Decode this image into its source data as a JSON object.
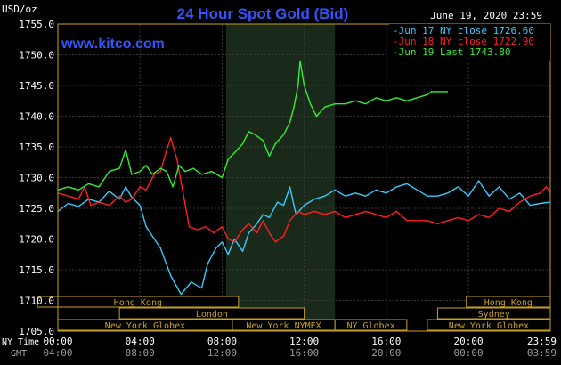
{
  "chart_data": {
    "type": "line",
    "title": "24 Hour Spot Gold (Bid)",
    "watermark": "www.kitco.com",
    "timestamp": "June 19, 2020 23:59",
    "ylabel": "USD/oz",
    "ylim": [
      1705,
      1755
    ],
    "y_ticks": [
      "1755.0",
      "1750.0",
      "1745.0",
      "1740.0",
      "1735.0",
      "1730.0",
      "1725.0",
      "1720.0",
      "1715.0",
      "1710.0",
      "1705.0"
    ],
    "x_row_label_ny": "NY Time",
    "x_row_label_gmt": "GMT",
    "x_ticks_ny": [
      "00:00",
      "04:00",
      "08:00",
      "12:00",
      "16:00",
      "20:00",
      "23:59"
    ],
    "x_ticks_gmt": [
      "04:00",
      "08:00",
      "12:00",
      "16:00",
      "20:00",
      "00:00",
      "03:59"
    ],
    "grid": true,
    "legend_position": "top-right",
    "colors": {
      "series_17": "#33ccff",
      "series_18": "#ff2020",
      "series_19": "#33ee33",
      "frame": "#c8a020",
      "shade": "#1a2a1a"
    },
    "legend": [
      "Jun 17 NY close 1726.60",
      "Jun 18 NY close 1722.90",
      "Jun 19 Last 1743.80"
    ],
    "markets": [
      {
        "name": "Hong Kong",
        "row": 0,
        "start": -1.0,
        "end": 8.8
      },
      {
        "name": "Hong Kong",
        "row": 0,
        "start": 19.9,
        "end": 23.99
      },
      {
        "name": "London",
        "row": 1,
        "start": 3.0,
        "end": 12.0
      },
      {
        "name": "Sydney",
        "row": 1,
        "start": 18.5,
        "end": 23.99
      },
      {
        "name": "New York Globex",
        "row": 2,
        "start": 0.0,
        "end": 8.5
      },
      {
        "name": "New York NYMEX",
        "row": 2,
        "start": 8.5,
        "end": 13.5
      },
      {
        "name": "NY Globex",
        "row": 2,
        "start": 13.5,
        "end": 17.0
      },
      {
        "name": "New York Globex",
        "row": 2,
        "start": 18.0,
        "end": 23.99
      }
    ],
    "shaded_hours": [
      8.2,
      13.5
    ],
    "series": [
      {
        "name": "Jun 17 NY close 1726.60",
        "color": "#33ccff",
        "points": [
          [
            0,
            1724.5
          ],
          [
            0.5,
            1725.8
          ],
          [
            1,
            1725.3
          ],
          [
            1.5,
            1726.5
          ],
          [
            2,
            1726.0
          ],
          [
            2.5,
            1727.8
          ],
          [
            3,
            1726.5
          ],
          [
            3.3,
            1728.5
          ],
          [
            3.6,
            1726.8
          ],
          [
            4,
            1725.5
          ],
          [
            4.3,
            1722.0
          ],
          [
            4.7,
            1720.0
          ],
          [
            5,
            1718.5
          ],
          [
            5.5,
            1714.0
          ],
          [
            6,
            1711.0
          ],
          [
            6.5,
            1713.0
          ],
          [
            7,
            1712.0
          ],
          [
            7.3,
            1716.0
          ],
          [
            7.7,
            1718.5
          ],
          [
            8,
            1719.5
          ],
          [
            8.3,
            1717.5
          ],
          [
            8.6,
            1720.0
          ],
          [
            9,
            1718.0
          ],
          [
            9.3,
            1721.0
          ],
          [
            9.7,
            1722.5
          ],
          [
            10,
            1724.0
          ],
          [
            10.3,
            1723.5
          ],
          [
            10.7,
            1726.0
          ],
          [
            11,
            1725.5
          ],
          [
            11.3,
            1728.5
          ],
          [
            11.6,
            1724.0
          ],
          [
            12,
            1725.5
          ],
          [
            12.5,
            1726.5
          ],
          [
            13,
            1727.0
          ],
          [
            13.5,
            1728.0
          ],
          [
            14,
            1727.0
          ],
          [
            14.5,
            1727.5
          ],
          [
            15,
            1727.0
          ],
          [
            15.5,
            1728.0
          ],
          [
            16,
            1727.5
          ],
          [
            16.5,
            1728.5
          ],
          [
            17,
            1729.0
          ],
          [
            17.5,
            1728.0
          ],
          [
            18,
            1727.0
          ],
          [
            18.5,
            1727.0
          ],
          [
            19,
            1727.5
          ],
          [
            19.5,
            1728.5
          ],
          [
            20,
            1727.0
          ],
          [
            20.5,
            1729.5
          ],
          [
            21,
            1727.0
          ],
          [
            21.5,
            1728.5
          ],
          [
            22,
            1726.5
          ],
          [
            22.5,
            1727.5
          ],
          [
            23,
            1725.5
          ],
          [
            23.5,
            1725.8
          ],
          [
            23.99,
            1726.0
          ]
        ]
      },
      {
        "name": "Jun 18 NY close 1722.90",
        "color": "#ff2020",
        "points": [
          [
            0,
            1727.5
          ],
          [
            0.5,
            1727.0
          ],
          [
            1,
            1726.5
          ],
          [
            1.3,
            1728.5
          ],
          [
            1.6,
            1725.5
          ],
          [
            2,
            1726.0
          ],
          [
            2.5,
            1725.5
          ],
          [
            3,
            1727.0
          ],
          [
            3.3,
            1726.0
          ],
          [
            3.6,
            1726.5
          ],
          [
            4,
            1728.5
          ],
          [
            4.3,
            1728.0
          ],
          [
            4.7,
            1730.5
          ],
          [
            5,
            1731.0
          ],
          [
            5.3,
            1734.5
          ],
          [
            5.5,
            1736.5
          ],
          [
            5.8,
            1733.0
          ],
          [
            6.1,
            1727.5
          ],
          [
            6.4,
            1722.0
          ],
          [
            6.8,
            1721.5
          ],
          [
            7.2,
            1722.0
          ],
          [
            7.6,
            1721.0
          ],
          [
            8,
            1722.0
          ],
          [
            8.3,
            1720.0
          ],
          [
            8.6,
            1719.5
          ],
          [
            9,
            1721.5
          ],
          [
            9.3,
            1722.5
          ],
          [
            9.7,
            1721.0
          ],
          [
            10,
            1723.0
          ],
          [
            10.3,
            1721.0
          ],
          [
            10.6,
            1719.5
          ],
          [
            11,
            1720.5
          ],
          [
            11.3,
            1723.0
          ],
          [
            11.7,
            1724.5
          ],
          [
            12,
            1724.0
          ],
          [
            12.5,
            1724.5
          ],
          [
            13,
            1724.0
          ],
          [
            13.5,
            1724.5
          ],
          [
            14,
            1723.5
          ],
          [
            14.5,
            1724.0
          ],
          [
            15,
            1724.5
          ],
          [
            15.5,
            1724.0
          ],
          [
            16,
            1723.5
          ],
          [
            16.5,
            1724.5
          ],
          [
            17,
            1723.0
          ],
          [
            17.5,
            1723.0
          ],
          [
            18,
            1723.0
          ],
          [
            18.5,
            1722.5
          ],
          [
            19,
            1723.0
          ],
          [
            19.5,
            1723.5
          ],
          [
            20,
            1723.0
          ],
          [
            20.5,
            1724.0
          ],
          [
            21,
            1723.5
          ],
          [
            21.5,
            1725.0
          ],
          [
            22,
            1724.5
          ],
          [
            22.5,
            1726.0
          ],
          [
            23,
            1727.0
          ],
          [
            23.5,
            1727.5
          ],
          [
            23.8,
            1728.5
          ],
          [
            23.99,
            1727.5
          ]
        ]
      },
      {
        "name": "Jun 19 Last 1743.80",
        "color": "#33ee33",
        "points": [
          [
            0,
            1728.0
          ],
          [
            0.5,
            1728.5
          ],
          [
            1,
            1728.0
          ],
          [
            1.5,
            1729.0
          ],
          [
            2,
            1728.5
          ],
          [
            2.5,
            1731.0
          ],
          [
            3,
            1731.5
          ],
          [
            3.3,
            1734.5
          ],
          [
            3.6,
            1730.5
          ],
          [
            4,
            1731.0
          ],
          [
            4.3,
            1732.0
          ],
          [
            4.6,
            1730.5
          ],
          [
            5,
            1731.5
          ],
          [
            5.3,
            1731.0
          ],
          [
            5.6,
            1728.5
          ],
          [
            5.9,
            1732.0
          ],
          [
            6.2,
            1731.0
          ],
          [
            6.6,
            1731.5
          ],
          [
            7,
            1730.5
          ],
          [
            7.5,
            1731.0
          ],
          [
            8,
            1730.0
          ],
          [
            8.3,
            1733.0
          ],
          [
            8.6,
            1734.0
          ],
          [
            9,
            1735.5
          ],
          [
            9.3,
            1737.5
          ],
          [
            9.6,
            1737.0
          ],
          [
            10,
            1736.0
          ],
          [
            10.3,
            1733.5
          ],
          [
            10.6,
            1735.5
          ],
          [
            11,
            1737.0
          ],
          [
            11.3,
            1739.0
          ],
          [
            11.5,
            1741.5
          ],
          [
            11.7,
            1745.0
          ],
          [
            11.8,
            1749.0
          ],
          [
            12,
            1745.0
          ],
          [
            12.3,
            1742.0
          ],
          [
            12.6,
            1740.0
          ],
          [
            13,
            1741.5
          ],
          [
            13.5,
            1742.0
          ],
          [
            14,
            1742.0
          ],
          [
            14.5,
            1742.5
          ],
          [
            15,
            1742.0
          ],
          [
            15.5,
            1743.0
          ],
          [
            16,
            1742.5
          ],
          [
            16.5,
            1743.0
          ],
          [
            17,
            1742.5
          ],
          [
            17.5,
            1743.0
          ],
          [
            18,
            1743.5
          ],
          [
            18.2,
            1744.0
          ],
          [
            19.0,
            1744.0
          ]
        ]
      }
    ]
  }
}
